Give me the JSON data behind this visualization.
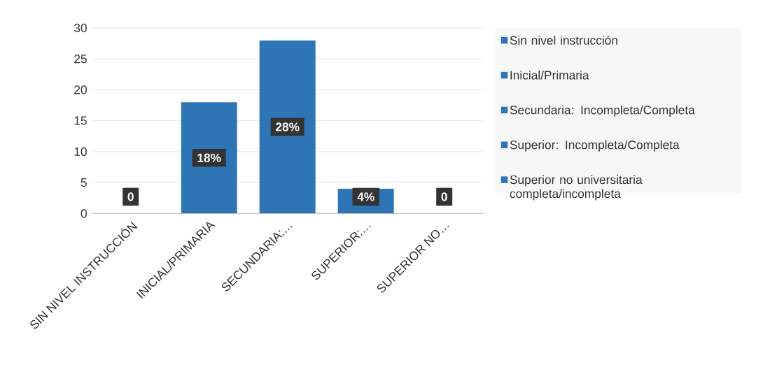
{
  "chart_data": {
    "type": "bar",
    "categories": [
      "SIN NIVEL INSTRUCCIÓN",
      "INICIAL/PRIMARIA",
      "SECUNDARIA:…",
      "SUPERIOR:…",
      "SUPERIOR NO…"
    ],
    "series": [
      {
        "name": "Sin nivel instrucción",
        "color": "#2e75b6",
        "values": [
          0,
          null,
          null,
          null,
          null
        ],
        "value_labels": [
          "0",
          null,
          null,
          null,
          null
        ]
      },
      {
        "name": "Inicial/Primaria",
        "color": "#2e75b6",
        "values": [
          null,
          18,
          null,
          null,
          null
        ],
        "value_labels": [
          null,
          "18%",
          null,
          null,
          null
        ]
      },
      {
        "name": "Secundaria: Incompleta/Completa",
        "color": "#2e75b6",
        "values": [
          null,
          null,
          28,
          null,
          null
        ],
        "value_labels": [
          null,
          null,
          "28%",
          null,
          null
        ]
      },
      {
        "name": "Superior: Incompleta/Completa",
        "color": "#2e75b6",
        "values": [
          null,
          null,
          null,
          4,
          null
        ],
        "value_labels": [
          null,
          null,
          null,
          "4%",
          null
        ]
      },
      {
        "name": "Superior no universitaria completa/incompleta",
        "color": "#2e75b6",
        "values": [
          null,
          null,
          null,
          null,
          0
        ],
        "value_labels": [
          null,
          null,
          null,
          null,
          "0"
        ]
      }
    ],
    "ylim": [
      0,
      30
    ],
    "yticks": [
      0,
      5,
      10,
      15,
      20,
      25,
      30
    ],
    "grid": "y",
    "legend": "right"
  }
}
